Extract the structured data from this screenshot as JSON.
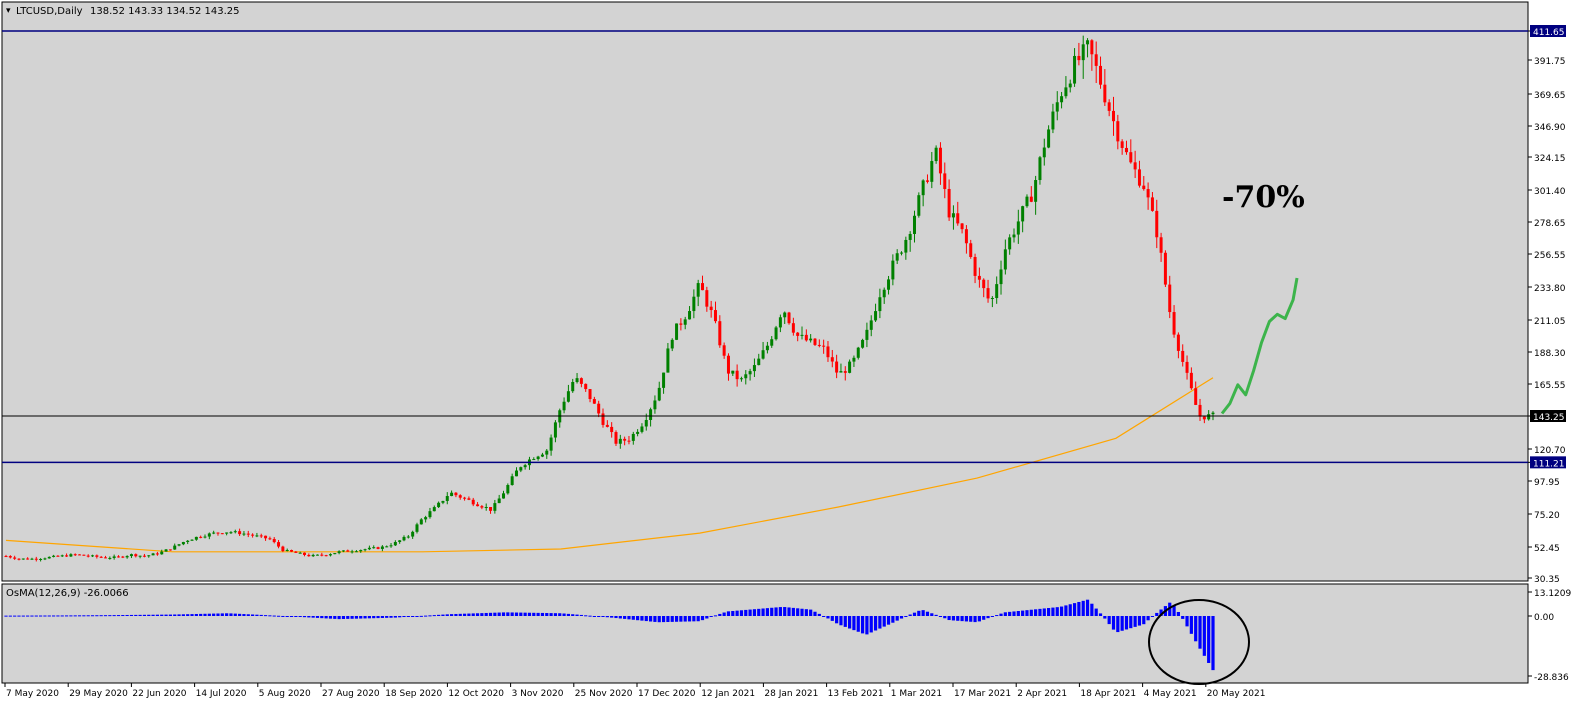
{
  "header": {
    "symbol_timeframe": "LTCUSD,Daily",
    "ohlc": "138.52 143.33 134.52 143.25"
  },
  "annotation": {
    "text": "-70%"
  },
  "colors": {
    "background": "#d3d3d3",
    "bull": "#008000",
    "bear": "#ff0000",
    "ma": "#ffa500",
    "level_line": "#000080",
    "price_line": "#000000",
    "histogram": "#0000ff",
    "projection": "#3cb44b"
  },
  "chart_data": [
    {
      "type": "candlestick",
      "title": "LTCUSD,Daily",
      "ylim": [
        30.35,
        411.65
      ],
      "y_ticks": [
        "411.65",
        "391.75",
        "369.65",
        "346.90",
        "324.15",
        "301.40",
        "278.65",
        "256.55",
        "233.80",
        "211.05",
        "188.30",
        "165.55",
        "143.25",
        "120.70",
        "111.21",
        "97.95",
        "75.20",
        "52.45",
        "30.35"
      ],
      "highlighted_levels": [
        {
          "label": "411.65",
          "value": 411.65,
          "style": "horizontal-line"
        },
        {
          "label": "143.25",
          "value": 143.25,
          "style": "current-price"
        },
        {
          "label": "111.21",
          "value": 111.21,
          "style": "horizontal-line"
        }
      ],
      "x_ticks": [
        "7 May 2020",
        "29 May 2020",
        "22 Jun 2020",
        "14 Jul 2020",
        "5 Aug 2020",
        "27 Aug 2020",
        "18 Sep 2020",
        "12 Oct 2020",
        "3 Nov 2020",
        "25 Nov 2020",
        "17 Dec 2020",
        "12 Jan 2021",
        "28 Jan 2021",
        "13 Feb 2021",
        "1 Mar 2021",
        "17 Mar 2021",
        "2 Apr 2021",
        "18 Apr 2021",
        "4 May 2021",
        "20 May 2021"
      ],
      "price_path": [
        [
          0,
          46
        ],
        [
          10,
          44
        ],
        [
          20,
          44
        ],
        [
          30,
          45
        ],
        [
          40,
          46
        ],
        [
          50,
          47
        ],
        [
          60,
          46
        ],
        [
          70,
          45
        ],
        [
          80,
          45
        ],
        [
          90,
          47
        ],
        [
          100,
          46
        ],
        [
          110,
          48
        ],
        [
          120,
          52
        ],
        [
          130,
          57
        ],
        [
          140,
          60
        ],
        [
          150,
          62
        ],
        [
          160,
          63
        ],
        [
          170,
          62
        ],
        [
          180,
          60
        ],
        [
          190,
          58
        ],
        [
          200,
          50
        ],
        [
          210,
          48
        ],
        [
          220,
          46
        ],
        [
          230,
          47
        ],
        [
          240,
          49
        ],
        [
          250,
          50
        ],
        [
          260,
          51
        ],
        [
          270,
          52
        ],
        [
          280,
          55
        ],
        [
          290,
          60
        ],
        [
          300,
          72
        ],
        [
          310,
          80
        ],
        [
          320,
          90
        ],
        [
          330,
          86
        ],
        [
          340,
          82
        ],
        [
          350,
          78
        ],
        [
          360,
          92
        ],
        [
          370,
          108
        ],
        [
          380,
          115
        ],
        [
          390,
          120
        ],
        [
          400,
          150
        ],
        [
          410,
          170
        ],
        [
          420,
          158
        ],
        [
          430,
          140
        ],
        [
          440,
          125
        ],
        [
          450,
          128
        ],
        [
          460,
          140
        ],
        [
          470,
          160
        ],
        [
          480,
          200
        ],
        [
          490,
          215
        ],
        [
          500,
          235
        ],
        [
          510,
          212
        ],
        [
          520,
          175
        ],
        [
          530,
          168
        ],
        [
          540,
          178
        ],
        [
          550,
          195
        ],
        [
          560,
          220
        ],
        [
          570,
          200
        ],
        [
          580,
          195
        ],
        [
          590,
          190
        ],
        [
          600,
          172
        ],
        [
          610,
          180
        ],
        [
          620,
          200
        ],
        [
          630,
          230
        ],
        [
          640,
          250
        ],
        [
          650,
          270
        ],
        [
          660,
          300
        ],
        [
          670,
          328
        ],
        [
          680,
          285
        ],
        [
          690,
          270
        ],
        [
          700,
          240
        ],
        [
          710,
          222
        ],
        [
          720,
          260
        ],
        [
          730,
          280
        ],
        [
          740,
          300
        ],
        [
          750,
          340
        ],
        [
          760,
          370
        ],
        [
          770,
          388
        ],
        [
          780,
          400
        ],
        [
          790,
          375
        ],
        [
          800,
          345
        ],
        [
          810,
          320
        ],
        [
          820,
          305
        ],
        [
          830,
          270
        ],
        [
          840,
          210
        ],
        [
          850,
          175
        ],
        [
          860,
          143
        ],
        [
          870,
          143.25
        ]
      ],
      "series": [
        {
          "name": "OsMA(12,26,9)",
          "value_label": "-26.0066"
        }
      ],
      "moving_average": [
        [
          0,
          57
        ],
        [
          120,
          49
        ],
        [
          300,
          49
        ],
        [
          400,
          51
        ],
        [
          500,
          62
        ],
        [
          600,
          80
        ],
        [
          700,
          100
        ],
        [
          800,
          128
        ],
        [
          870,
          170
        ]
      ],
      "projection_path": [
        [
          870,
          145
        ],
        [
          880,
          152
        ],
        [
          890,
          165
        ],
        [
          900,
          158
        ],
        [
          910,
          175
        ],
        [
          920,
          195
        ],
        [
          930,
          210
        ],
        [
          940,
          215
        ],
        [
          950,
          212
        ],
        [
          960,
          225
        ],
        [
          965,
          240
        ]
      ]
    },
    {
      "type": "bar",
      "title": "OsMA(12,26,9) -26.0066",
      "ylim": [
        -28.836,
        13.1209
      ],
      "y_ticks": [
        "13.1209",
        "0.00",
        "-28.836"
      ],
      "histogram_segments": [
        [
          0,
          0.2
        ],
        [
          40,
          0.3
        ],
        [
          80,
          0.5
        ],
        [
          120,
          0.8
        ],
        [
          160,
          1.5
        ],
        [
          200,
          0
        ],
        [
          240,
          -1.5
        ],
        [
          280,
          -0.8
        ],
        [
          320,
          1.0
        ],
        [
          360,
          2.0
        ],
        [
          400,
          1.5
        ],
        [
          440,
          -1.0
        ],
        [
          470,
          -3.0
        ],
        [
          500,
          -2.5
        ],
        [
          520,
          2.5
        ],
        [
          560,
          5.0
        ],
        [
          580,
          3.5
        ],
        [
          600,
          -4.0
        ],
        [
          620,
          -9.0
        ],
        [
          640,
          -3.0
        ],
        [
          660,
          3.5
        ],
        [
          680,
          -2.0
        ],
        [
          700,
          -3.0
        ],
        [
          720,
          2.0
        ],
        [
          760,
          5.0
        ],
        [
          780,
          9.0
        ],
        [
          800,
          -8.0
        ],
        [
          820,
          -4.0
        ],
        [
          840,
          8.0
        ],
        [
          860,
          -15.0
        ],
        [
          870,
          -26.0066
        ]
      ]
    }
  ]
}
